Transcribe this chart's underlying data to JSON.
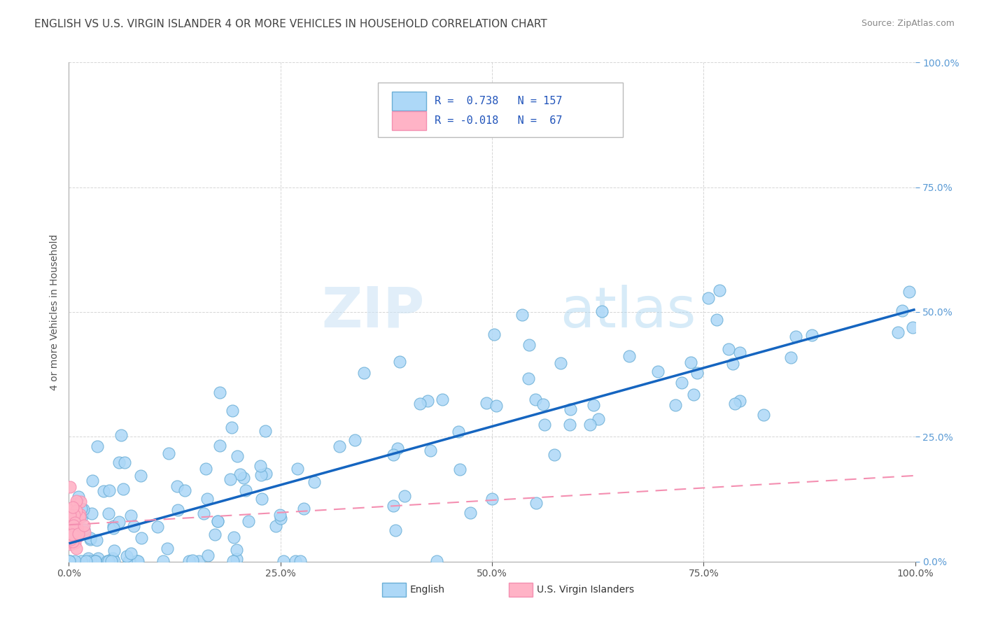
{
  "title": "ENGLISH VS U.S. VIRGIN ISLANDER 4 OR MORE VEHICLES IN HOUSEHOLD CORRELATION CHART",
  "source": "Source: ZipAtlas.com",
  "ylabel": "4 or more Vehicles in Household",
  "xlim": [
    0,
    1
  ],
  "ylim": [
    0,
    1
  ],
  "xticks": [
    0.0,
    0.25,
    0.5,
    0.75,
    1.0
  ],
  "xtick_labels": [
    "0.0%",
    "25.0%",
    "50.0%",
    "75.0%",
    "100.0%"
  ],
  "yticks": [
    0.0,
    0.25,
    0.5,
    0.75,
    1.0
  ],
  "ytick_labels": [
    "0.0%",
    "25.0%",
    "50.0%",
    "75.0%",
    "100.0%"
  ],
  "english_color": "#add8f7",
  "english_edge_color": "#6aaed6",
  "virgin_color": "#ffb3c6",
  "virgin_edge_color": "#f48fb1",
  "trend_english_color": "#1565c0",
  "trend_virgin_color": "#f48fb1",
  "R_english": 0.738,
  "N_english": 157,
  "R_virgin": -0.018,
  "N_virgin": 67,
  "watermark_ZIP": "ZIP",
  "watermark_atlas": "atlas",
  "grid_color": "#cccccc",
  "background_color": "#ffffff",
  "title_fontsize": 11,
  "label_fontsize": 10,
  "tick_fontsize": 10,
  "tick_color_right": "#5b9bd5",
  "tick_color_bottom": "#555555"
}
